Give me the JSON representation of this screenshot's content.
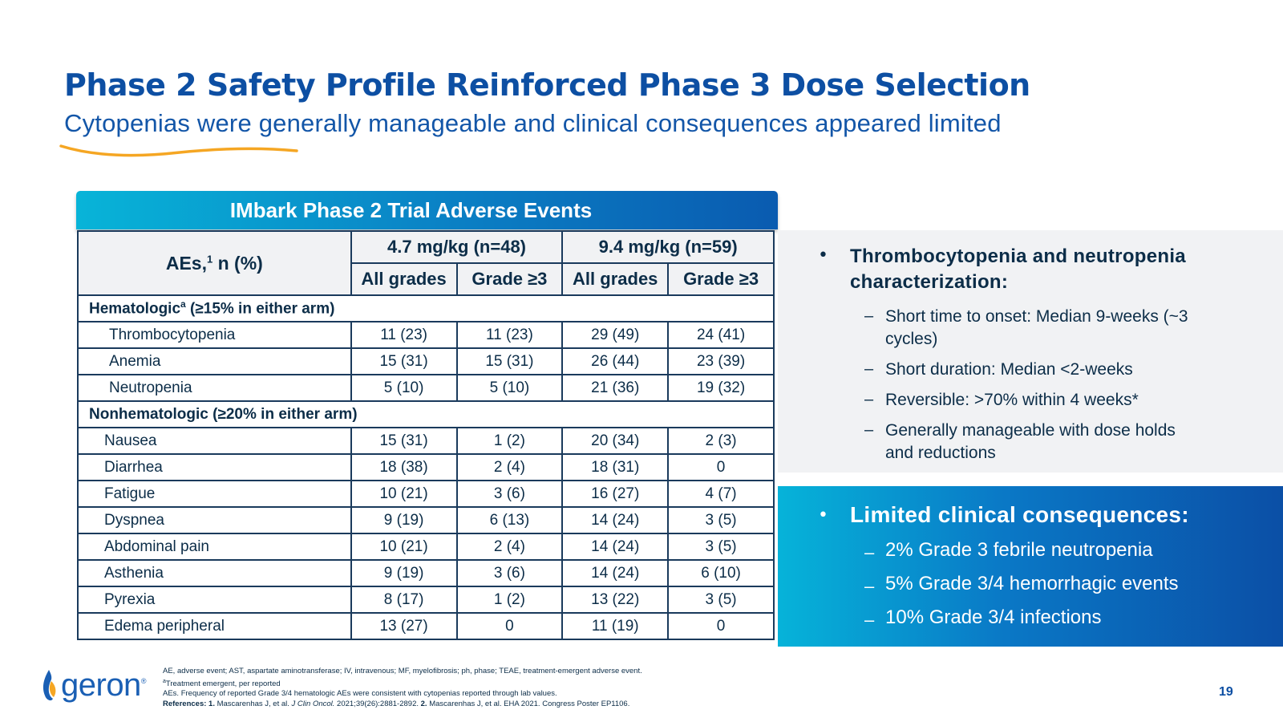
{
  "slide": {
    "title": "Phase 2 Safety Profile Reinforced Phase 3 Dose Selection",
    "subtitle": "Cytopenias were generally manageable and clinical consequences appeared limited",
    "page_number": "19"
  },
  "table": {
    "header": "IMbark Phase 2 Trial Adverse Events",
    "corner_label": "AEs,",
    "corner_sup": "1",
    "corner_label_tail": " n (%)",
    "arms": [
      "4.7 mg/kg (n=48)",
      "9.4 mg/kg (n=59)"
    ],
    "subcols": [
      "All grades",
      "Grade ≥3",
      "All grades",
      "Grade ≥3"
    ],
    "hem_section": {
      "label_a": "Hematologic",
      "sup": "a",
      "label_b": " (≥15% in either arm)"
    },
    "hem_rows": [
      {
        "name": "Thrombocytopenia",
        "v": [
          "11 (23)",
          "11 (23)",
          "29 (49)",
          "24 (41)"
        ]
      },
      {
        "name": "Anemia",
        "v": [
          "15 (31)",
          "15 (31)",
          "26 (44)",
          "23 (39)"
        ]
      },
      {
        "name": "Neutropenia",
        "v": [
          "5 (10)",
          "5 (10)",
          "21 (36)",
          "19 (32)"
        ]
      }
    ],
    "nonhem_section": "Nonhematologic (≥20% in either arm)",
    "nonhem_rows": [
      {
        "name": "Nausea",
        "v": [
          "15 (31)",
          "1 (2)",
          "20 (34)",
          "2 (3)"
        ]
      },
      {
        "name": "Diarrhea",
        "v": [
          "18 (38)",
          "2 (4)",
          "18 (31)",
          "0"
        ]
      },
      {
        "name": "Fatigue",
        "v": [
          "10 (21)",
          "3 (6)",
          "16 (27)",
          "4 (7)"
        ]
      },
      {
        "name": "Dyspnea",
        "v": [
          "9 (19)",
          "6 (13)",
          "14 (24)",
          "3 (5)"
        ]
      },
      {
        "name": "Abdominal pain",
        "v": [
          "10 (21)",
          "2 (4)",
          "14 (24)",
          "3 (5)"
        ]
      },
      {
        "name": "Asthenia",
        "v": [
          "9 (19)",
          "3 (6)",
          "14 (24)",
          "6 (10)"
        ]
      },
      {
        "name": "Pyrexia",
        "v": [
          "8 (17)",
          "1 (2)",
          "13 (22)",
          "3 (5)"
        ]
      },
      {
        "name": "Edema peripheral",
        "v": [
          "13 (27)",
          "0",
          "11 (19)",
          "0"
        ]
      }
    ]
  },
  "panel_top": {
    "heading": "Thrombocytopenia and neutropenia characterization:",
    "items": [
      "Short time to onset: Median 9-weeks (~3 cycles)",
      "Short duration: Median <2-weeks",
      "Reversible: >70% within 4 weeks*",
      "Generally manageable with dose holds and reductions"
    ]
  },
  "panel_bottom": {
    "heading": "Limited clinical consequences:",
    "items": [
      "2% Grade 3 febrile neutropenia",
      "5% Grade 3/4 hemorrhagic events",
      "10% Grade 3/4 infections"
    ]
  },
  "footer": {
    "logo_text": "geron",
    "logo_mark": "®",
    "line1": "AE, adverse event; AST, aspartate aminotransferase; IV, intravenous; MF, myelofibrosis; ph, phase; TEAE, treatment-emergent adverse event.",
    "line2_sup": "a",
    "line2": "Treatment emergent, per reported",
    "line3": " AEs. Frequency of reported Grade 3/4 hematologic AEs were consistent with cytopenias reported through lab values.",
    "line4_label": "References: ",
    "line4_r1_num": "1.",
    "line4_r1_a": " Mascarenhas J, et al. ",
    "line4_r1_journal": "J Clin Oncol.",
    "line4_r1_b": " 2021;39(26):2881-2892. ",
    "line4_r2_num": "2.",
    "line4_r2": " Mascarenhas J, et al. EHA 2021. Congress Poster EP1106."
  },
  "colors": {
    "title_blue": "#0d4fa3",
    "table_border": "#1a3a5c",
    "header_gradient_start": "#08b4d8",
    "header_gradient_end": "#0a5bb0",
    "panel_grey": "#f1f2f4",
    "swoosh_orange": "#f5a623"
  }
}
